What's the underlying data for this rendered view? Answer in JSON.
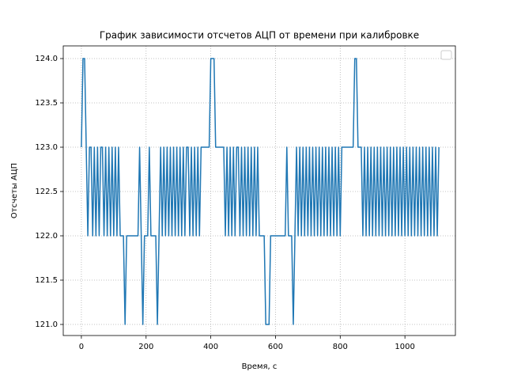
{
  "chart_data": {
    "type": "line",
    "title": "График зависимости отсчетов АЦП от времени при калибровке",
    "xlabel": "Время, с",
    "ylabel": "Отсчеты АЦП",
    "color": "#1f77b4",
    "grid": true,
    "xlim": [
      -56,
      1156
    ],
    "ylim": [
      120.875,
      124.143
    ],
    "xticks": [
      0,
      200,
      400,
      600,
      800,
      1000
    ],
    "yticks": [
      {
        "value": 121,
        "label": "121.0"
      },
      {
        "value": 121.5,
        "label": "121.5"
      },
      {
        "value": 122,
        "label": "122.0"
      },
      {
        "value": 122.5,
        "label": "122.5"
      },
      {
        "value": 123,
        "label": "123.0"
      },
      {
        "value": 123.5,
        "label": "123.5"
      },
      {
        "value": 124,
        "label": "124.0"
      }
    ],
    "x": [
      0,
      5,
      10,
      15,
      20,
      25,
      30,
      35,
      40,
      45,
      50,
      55,
      60,
      65,
      70,
      75,
      80,
      85,
      90,
      95,
      100,
      105,
      110,
      115,
      120,
      125,
      130,
      135,
      140,
      145,
      150,
      155,
      160,
      165,
      170,
      175,
      180,
      185,
      190,
      195,
      200,
      205,
      210,
      215,
      220,
      225,
      230,
      235,
      240,
      245,
      250,
      255,
      260,
      265,
      270,
      275,
      280,
      285,
      290,
      295,
      300,
      305,
      310,
      315,
      320,
      325,
      330,
      335,
      340,
      345,
      350,
      355,
      360,
      365,
      370,
      375,
      380,
      385,
      390,
      395,
      400,
      405,
      410,
      415,
      420,
      425,
      430,
      435,
      440,
      445,
      450,
      455,
      460,
      465,
      470,
      475,
      480,
      485,
      490,
      495,
      500,
      505,
      510,
      515,
      520,
      525,
      530,
      535,
      540,
      545,
      550,
      555,
      560,
      565,
      570,
      575,
      580,
      585,
      590,
      595,
      600,
      605,
      610,
      615,
      620,
      625,
      630,
      635,
      640,
      645,
      650,
      655,
      660,
      665,
      670,
      675,
      680,
      685,
      690,
      695,
      700,
      705,
      710,
      715,
      720,
      725,
      730,
      735,
      740,
      745,
      750,
      755,
      760,
      765,
      770,
      775,
      780,
      785,
      790,
      795,
      800,
      805,
      810,
      815,
      820,
      825,
      830,
      835,
      840,
      845,
      850,
      855,
      860,
      865,
      870,
      875,
      880,
      885,
      890,
      895,
      900,
      905,
      910,
      915,
      920,
      925,
      930,
      935,
      940,
      945,
      950,
      955,
      960,
      965,
      970,
      975,
      980,
      985,
      990,
      995,
      1000,
      1005,
      1010,
      1015,
      1020,
      1025,
      1030,
      1035,
      1040,
      1045,
      1050,
      1055,
      1060,
      1065,
      1070,
      1075,
      1080,
      1085,
      1090,
      1095,
      1100,
      1105
    ],
    "values": [
      123,
      124,
      124,
      123,
      122,
      123,
      123,
      122,
      123,
      122,
      123,
      122,
      123,
      123,
      122,
      123,
      122,
      123,
      122,
      123,
      122,
      123,
      122,
      123,
      122,
      122,
      122,
      121,
      122,
      122,
      122,
      122,
      122,
      122,
      122,
      122,
      123,
      122,
      121,
      122,
      122,
      122,
      123,
      122,
      122,
      122,
      122,
      121,
      122,
      123,
      122,
      123,
      122,
      123,
      122,
      123,
      122,
      123,
      122,
      123,
      122,
      123,
      122,
      123,
      122,
      123,
      123,
      122,
      123,
      122,
      123,
      122,
      123,
      122,
      123,
      123,
      123,
      123,
      123,
      123,
      124,
      124,
      124,
      123,
      123,
      123,
      123,
      123,
      123,
      122,
      123,
      122,
      123,
      122,
      123,
      122,
      123,
      123,
      122,
      123,
      122,
      123,
      122,
      123,
      122,
      123,
      122,
      123,
      122,
      123,
      122,
      122,
      122,
      122,
      121,
      121,
      121,
      122,
      122,
      122,
      122,
      122,
      122,
      122,
      122,
      122,
      122,
      123,
      122,
      122,
      122,
      121,
      122,
      123,
      122,
      123,
      122,
      123,
      122,
      123,
      122,
      123,
      122,
      123,
      122,
      123,
      122,
      123,
      122,
      123,
      122,
      123,
      122,
      123,
      122,
      123,
      122,
      123,
      122,
      123,
      122,
      123,
      123,
      123,
      123,
      123,
      123,
      123,
      123,
      124,
      124,
      123,
      123,
      123,
      122,
      123,
      122,
      123,
      122,
      123,
      122,
      123,
      122,
      123,
      122,
      123,
      122,
      123,
      122,
      123,
      122,
      123,
      122,
      123,
      122,
      123,
      122,
      123,
      122,
      123,
      122,
      123,
      122,
      123,
      122,
      123,
      122,
      123,
      122,
      123,
      122,
      123,
      122,
      123,
      122,
      123,
      122,
      123,
      122,
      123,
      122,
      123
    ]
  }
}
